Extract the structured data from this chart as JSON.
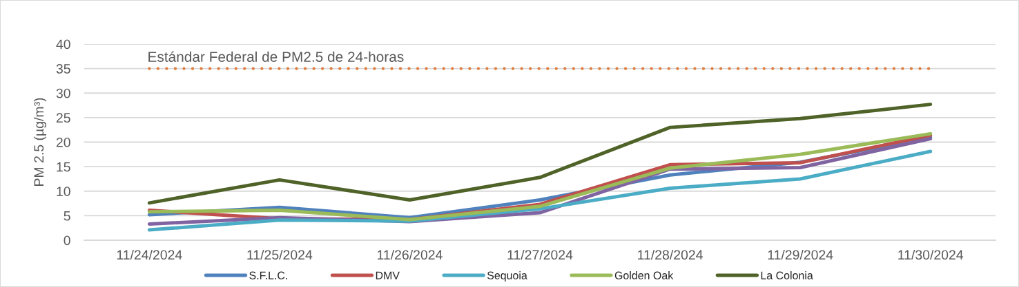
{
  "chart_data": {
    "type": "line",
    "ylabel": "PM 2.5 (µg/m³)",
    "categories": [
      "11/24/2024",
      "11/25/2024",
      "11/26/2024",
      "11/27/2024",
      "11/28/2024",
      "11/29/2024",
      "11/30/2024"
    ],
    "ylim": [
      0,
      40
    ],
    "yticks": [
      0,
      5,
      10,
      15,
      20,
      25,
      30,
      35,
      40
    ],
    "grid": "y",
    "legend": "bottom",
    "series": [
      {
        "name": "S.F.L.C.",
        "color": "#4f81bd",
        "values": [
          5.2,
          6.7,
          4.6,
          8.2,
          13.3,
          15.9,
          21.0
        ]
      },
      {
        "name": "DMV",
        "color": "#c0504d",
        "values": [
          6.1,
          4.4,
          4.2,
          7.3,
          15.4,
          15.8,
          21.4
        ]
      },
      {
        "color": "#8064a2",
        "values": [
          3.3,
          4.6,
          3.8,
          5.6,
          14.5,
          14.8,
          20.7
        ]
      },
      {
        "name": "Sequoia",
        "color": "#4bacc6",
        "values": [
          2.1,
          4.1,
          3.9,
          6.4,
          10.6,
          12.5,
          18.1
        ]
      },
      {
        "name": "Golden Oak",
        "color": "#9bbb59",
        "values": [
          5.8,
          6.1,
          4.2,
          6.9,
          14.7,
          17.5,
          21.7
        ]
      },
      {
        "name": "La Colonia",
        "color": "#4f6228",
        "values": [
          7.6,
          12.3,
          8.2,
          12.8,
          23.0,
          24.8,
          27.7
        ]
      }
    ],
    "ref_lines": [
      {
        "axis": "y",
        "value": 35,
        "label": "Estándar Federal de PM2.5 de 24-horas",
        "color": "#e07b39",
        "line_style": "dotted"
      }
    ]
  }
}
